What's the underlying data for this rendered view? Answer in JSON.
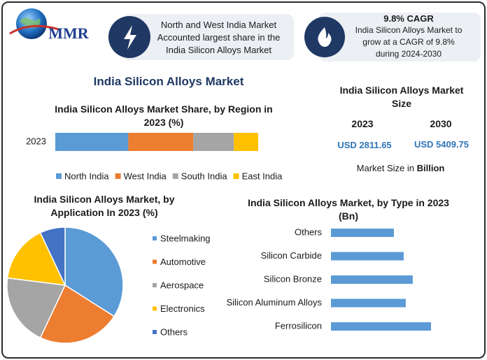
{
  "header": {
    "logo_text": "MMR",
    "info_1": {
      "lines": [
        "North and West India Market",
        "Accounted largest share in the",
        "India Silicon Alloys Market"
      ]
    },
    "info_2": {
      "title": "9.8% CAGR",
      "lines": [
        "India Silicon Alloys Market to",
        "grow at a CAGR of 9.8%",
        "during 2024-2030"
      ]
    }
  },
  "title": "India Silicon Alloys Market",
  "market_size": {
    "title": "India Silicon Alloys Market Size",
    "years": [
      "2023",
      "2030"
    ],
    "values": [
      "USD 2811.65",
      "USD 5409.75"
    ],
    "note": "Market Size in",
    "note_unit": "Billion"
  },
  "chart_data": [
    {
      "type": "bar",
      "orientation": "horizontal",
      "stacked": true,
      "title": "India Silicon Alloys Market Share, by Region in 2023 (%)",
      "categories": [
        "2023"
      ],
      "series": [
        {
          "name": "North India",
          "color": "#5b9bd5",
          "values": [
            36
          ]
        },
        {
          "name": "West India",
          "color": "#ed7d31",
          "values": [
            32
          ]
        },
        {
          "name": "South India",
          "color": "#a5a5a5",
          "values": [
            20
          ]
        },
        {
          "name": "East India",
          "color": "#ffc000",
          "values": [
            12
          ]
        }
      ],
      "legend": "bottom"
    },
    {
      "type": "pie",
      "title": "India Silicon Alloys Market, by Application In 2023 (%)",
      "categories": [
        "Steelmaking",
        "Automotive",
        "Aerospace",
        "Electronics",
        "Others"
      ],
      "values": [
        34,
        23,
        20,
        16,
        7
      ],
      "colors": [
        "#5b9bd5",
        "#ed7d31",
        "#a5a5a5",
        "#ffc000",
        "#4472c4"
      ],
      "legend": "right"
    },
    {
      "type": "bar",
      "orientation": "horizontal",
      "title": "India Silicon Alloys Market, by Type in 2023 (Bn)",
      "categories": [
        "Others",
        "Silicon Carbide",
        "Silicon Bronze",
        "Silicon Aluminum Alloys",
        "Ferrosilicon"
      ],
      "values": [
        451,
        521,
        586,
        536,
        717
      ],
      "color": "#5b9bd5"
    }
  ]
}
